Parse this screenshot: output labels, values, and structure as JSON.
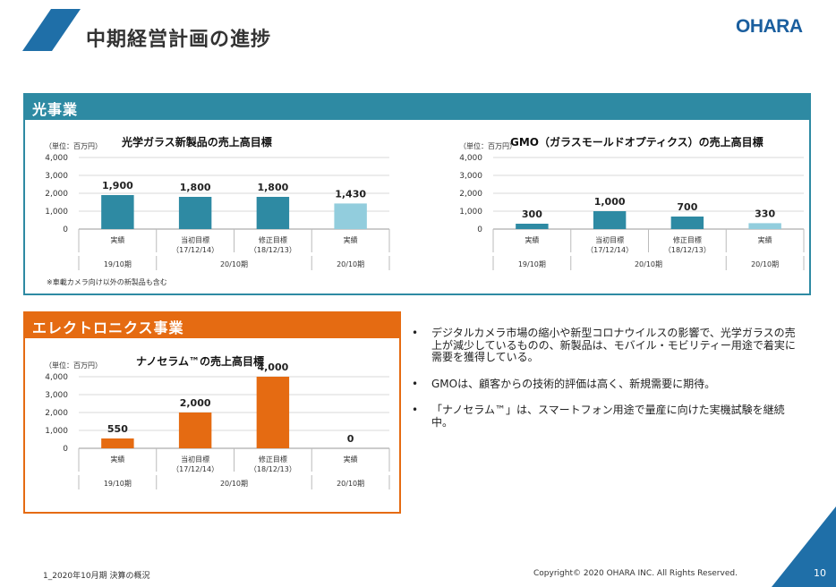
{
  "header": {
    "title": "中期経営計画の進捗",
    "logo": "OHARA",
    "accent_color": "#1a5e9e"
  },
  "optical": {
    "section_label": "光事業",
    "color": "#2e8aa3",
    "light_color": "#92cddd",
    "note": "※車載カメラ向け以外の新製品も含む"
  },
  "electronics": {
    "section_label": "エレクトロニクス事業",
    "color": "#e56b12"
  },
  "chart_data": [
    {
      "type": "bar",
      "title": "光学ガラス新製品の売上高目標",
      "unit": "（単位：百万円）",
      "categories": [
        "実績",
        "当初目標\n（17/12/14）",
        "修正目標\n（18/12/13）",
        "実績"
      ],
      "periods": [
        "19/10期",
        "20/10期",
        "20/10期"
      ],
      "values": [
        1900,
        1800,
        1800,
        1430
      ],
      "data_labels": [
        "1,900",
        "1,800",
        "1,800",
        "1,430"
      ],
      "yticks": [
        "4,000",
        "3,000",
        "2,000",
        "1,000",
        "0"
      ],
      "ylim": [
        0,
        4000
      ],
      "grid": true
    },
    {
      "type": "bar",
      "title": "GMO（ガラスモールドオプティクス）の売上高目標",
      "unit": "（単位：百万円）",
      "categories": [
        "実績",
        "当初目標\n（17/12/14）",
        "修正目標\n（18/12/13）",
        "実績"
      ],
      "periods": [
        "19/10期",
        "20/10期",
        "20/10期"
      ],
      "values": [
        300,
        1000,
        700,
        330
      ],
      "data_labels": [
        "300",
        "1,000",
        "700",
        "330"
      ],
      "yticks": [
        "4,000",
        "3,000",
        "2,000",
        "1,000",
        "0"
      ],
      "ylim": [
        0,
        4000
      ],
      "grid": true
    },
    {
      "type": "bar",
      "title": "ナノセラム™の売上高目標",
      "unit": "（単位：百万円）",
      "categories": [
        "実績",
        "当初目標\n（17/12/14）",
        "修正目標\n（18/12/13）",
        "実績"
      ],
      "periods": [
        "19/10期",
        "20/10期",
        "20/10期"
      ],
      "values": [
        550,
        2000,
        4000,
        0
      ],
      "data_labels": [
        "550",
        "2,000",
        "4,000",
        "0"
      ],
      "yticks": [
        "4,000",
        "3,000",
        "2,000",
        "1,000",
        "0"
      ],
      "ylim": [
        0,
        4000
      ],
      "grid": true
    }
  ],
  "bullets": [
    "デジタルカメラ市場の縮小や新型コロナウイルスの影響で、光学ガラスの売上が減少しているものの、新製品は、モバイル・モビリティー用途で着実に需要を獲得している。",
    "GMOは、顧客からの技術的評価は高く、新規需要に期待。",
    "「ナノセラム™」は、スマートフォン用途で量産に向けた実機試験を継続中。"
  ],
  "bullet_symbol": "•",
  "footer": {
    "left": "1_2020年10月期 決算の概況",
    "right": "Copyright© 2020 OHARA INC. All Rights Reserved.",
    "page": "10"
  }
}
